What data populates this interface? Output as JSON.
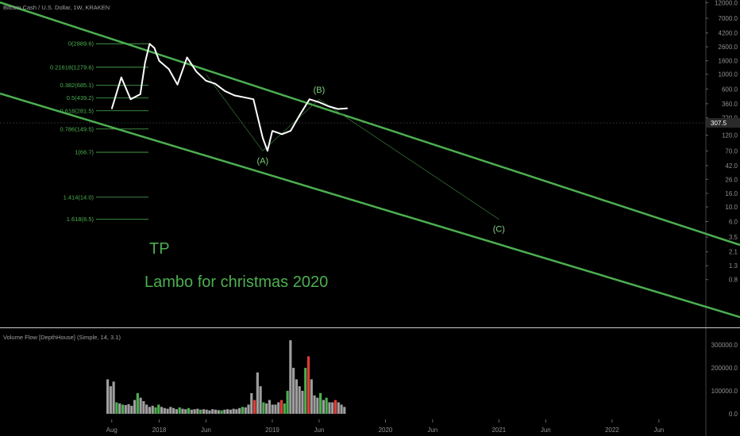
{
  "header": {
    "title": "Bitcoin Cash / U.S. Dollar, 1W, KRAKEN"
  },
  "price_badge": "307.5",
  "annotations": {
    "tp": "TP",
    "caption": "Lambo for christmas 2020"
  },
  "indicator": {
    "title": "Volume Flow [DepthHouse] (Simple, 14, 3.1)"
  },
  "colors": {
    "background": "#000000",
    "price_line": "#ffffff",
    "channel": "#4caf50",
    "fib": "#4caf50",
    "vol_neutral": "#9e9e9e",
    "vol_up": "#4caf50",
    "vol_down": "#e53935"
  },
  "chart_data": [
    {
      "type": "line",
      "title": "Bitcoin Cash / U.S. Dollar, 1W, KRAKEN",
      "y_scale": "log",
      "y_ticks": [
        "12000.0",
        "7000.0",
        "4200.0",
        "2600.0",
        "1600.0",
        "1000.0",
        "600.0",
        "360.0",
        "220.0",
        "120.0",
        "70.0",
        "42.0",
        "26.0",
        "16.0",
        "10.0",
        "6.0",
        "3.5",
        "2.1",
        "1.3",
        "0.8"
      ],
      "x_ticks": [
        "Aug",
        "2018",
        "Jun",
        "2019",
        "Jun",
        "2020",
        "Jun",
        "2021",
        "Jun",
        "2022",
        "Jun"
      ],
      "series": [
        {
          "x": [
            "2017-08",
            "2017-09",
            "2017-10",
            "2017-11",
            "2017-11",
            "2017-12",
            "2017-12",
            "2018-01",
            "2018-02",
            "2018-03",
            "2018-04",
            "2018-05",
            "2018-06",
            "2018-07",
            "2018-08",
            "2018-09",
            "2018-10",
            "2018-11",
            "2018-12",
            "2018-12",
            "2019-01",
            "2019-02",
            "2019-03",
            "2019-04",
            "2019-05",
            "2019-06",
            "2019-07",
            "2019-08",
            "2019-09"
          ],
          "y": [
            300,
            900,
            420,
            500,
            1500,
            2889.6,
            2500,
            1600,
            1200,
            700,
            1800,
            1100,
            800,
            720,
            560,
            480,
            450,
            420,
            110,
            70,
            140,
            125,
            140,
            250,
            420,
            380,
            330,
            300,
            307.5
          ]
        }
      ],
      "fib_levels": [
        {
          "label": "0(2889.6)",
          "value": 2889.6
        },
        {
          "label": "0.21618(1279.6)",
          "value": 1279.6
        },
        {
          "label": "0.382(685.1)",
          "value": 685.1
        },
        {
          "label": "0.5(439.2)",
          "value": 439.2
        },
        {
          "label": "0.618(281.5)",
          "value": 281.5
        },
        {
          "label": "0.786(149.5)",
          "value": 149.5
        },
        {
          "label": "1(66.7)",
          "value": 66.7
        },
        {
          "label": "1.414(14.0)",
          "value": 14.0
        },
        {
          "label": "1.618(6.5)",
          "value": 6.5
        }
      ],
      "wave_labels": [
        {
          "label": "(A)",
          "x": "2018-12",
          "y": 70
        },
        {
          "label": "(B)",
          "x": "2019-06",
          "y": 420
        },
        {
          "label": "(C)",
          "x": "2021-01",
          "y": 6.5
        }
      ]
    },
    {
      "type": "bar",
      "title": "Volume Flow [DepthHouse] (Simple, 14, 3.1)",
      "y_ticks": [
        "300000.0",
        "200000.0",
        "100000.0",
        "0.0"
      ],
      "values": [
        150000,
        120000,
        140000,
        50000,
        45000,
        40000,
        38000,
        42000,
        35000,
        60000,
        90000,
        70000,
        55000,
        40000,
        30000,
        35000,
        28000,
        40000,
        30000,
        25000,
        22000,
        30000,
        25000,
        20000,
        28000,
        22000,
        20000,
        25000,
        18000,
        20000,
        22000,
        18000,
        20000,
        18000,
        15000,
        20000,
        18000,
        16000,
        15000,
        18000,
        20000,
        18000,
        22000,
        20000,
        25000,
        30000,
        28000,
        40000,
        90000,
        60000,
        180000,
        120000,
        50000,
        45000,
        60000,
        40000,
        40000,
        50000,
        60000,
        45000,
        100000,
        320000,
        200000,
        150000,
        120000,
        100000,
        200000,
        250000,
        150000,
        80000,
        70000,
        90000,
        60000,
        70000,
        50000,
        50000,
        60000,
        50000,
        40000,
        30000
      ]
    }
  ]
}
